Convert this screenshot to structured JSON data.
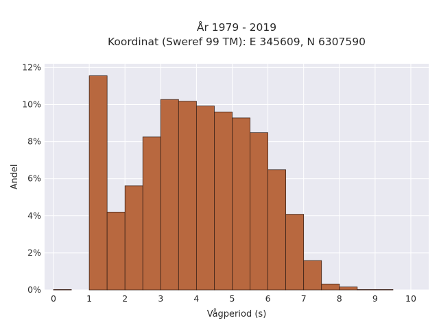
{
  "chart_data": {
    "type": "bar",
    "title_lines": [
      "År 1979 - 2019",
      "Koordinat (Sweref 99 TM): E 345609, N 6307590"
    ],
    "xlabel": "Vågperiod (s)",
    "ylabel": "Andel",
    "xlim": [
      -0.25,
      10.5
    ],
    "ylim": [
      0,
      12.2
    ],
    "x_ticks": [
      0,
      1,
      2,
      3,
      4,
      5,
      6,
      7,
      8,
      9,
      10
    ],
    "y_ticks": [
      0,
      2,
      4,
      6,
      8,
      10,
      12
    ],
    "y_tick_labels": [
      "0%",
      "2%",
      "4%",
      "6%",
      "8%",
      "10%",
      "12%"
    ],
    "bin_width": 0.5,
    "bins": [
      {
        "start": 0.0,
        "value": 0.02
      },
      {
        "start": 0.5,
        "value": 0.0
      },
      {
        "start": 1.0,
        "value": 11.55
      },
      {
        "start": 1.5,
        "value": 4.2
      },
      {
        "start": 2.0,
        "value": 5.62
      },
      {
        "start": 2.5,
        "value": 8.25
      },
      {
        "start": 3.0,
        "value": 10.27
      },
      {
        "start": 3.5,
        "value": 10.18
      },
      {
        "start": 4.0,
        "value": 9.92
      },
      {
        "start": 4.5,
        "value": 9.6
      },
      {
        "start": 5.0,
        "value": 9.28
      },
      {
        "start": 5.5,
        "value": 8.48
      },
      {
        "start": 6.0,
        "value": 6.48
      },
      {
        "start": 6.5,
        "value": 4.08
      },
      {
        "start": 7.0,
        "value": 1.58
      },
      {
        "start": 7.5,
        "value": 0.32
      },
      {
        "start": 8.0,
        "value": 0.16
      },
      {
        "start": 8.5,
        "value": 0.02
      },
      {
        "start": 9.0,
        "value": 0.02
      }
    ],
    "bar_color": "#b8683f",
    "bar_edge_color": "#3a2218",
    "plot_background": "#e9e9f1",
    "grid": true,
    "grid_color": "#ffffff"
  }
}
